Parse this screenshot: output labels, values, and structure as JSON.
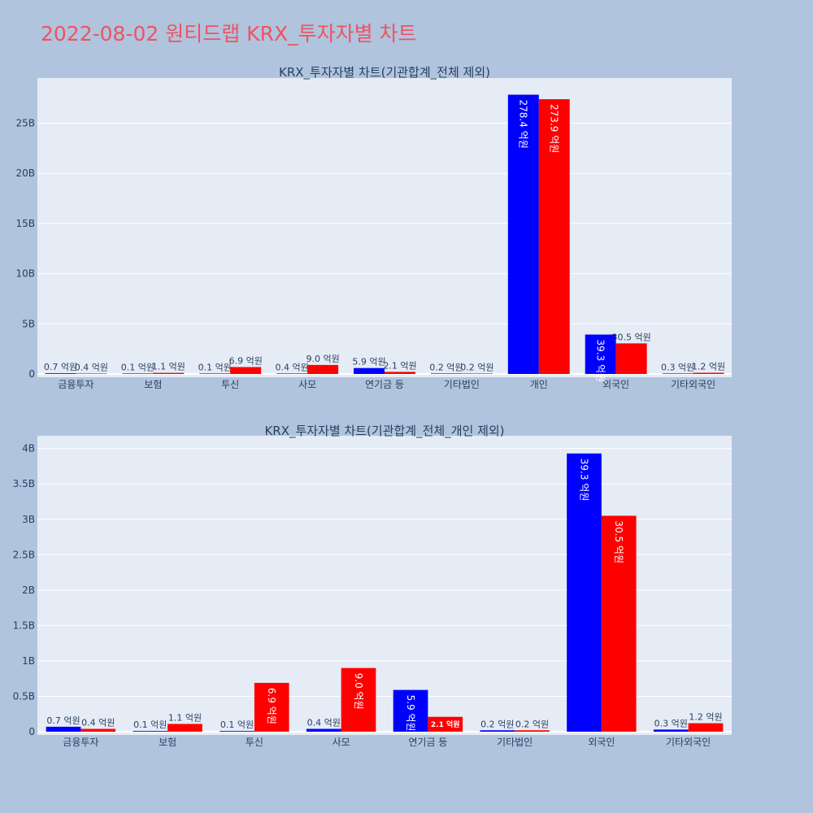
{
  "page": {
    "title": "2022-08-02 원티드랩 KRX_투자자별 차트"
  },
  "colors": {
    "background": "#b0c4de",
    "plot_bg": "#e5ecf6",
    "title": "#ef5360",
    "buy": "#0000ff",
    "sell": "#ff0000",
    "text": "#2a3f5f"
  },
  "chart_data": [
    {
      "type": "bar",
      "title": "KRX_투자자별 차트(기관합계_전체 제외)",
      "categories": [
        "금융투자",
        "보험",
        "투신",
        "사모",
        "연기금 등",
        "기타법인",
        "개인",
        "외국인",
        "기타외국인"
      ],
      "ylim": [
        0,
        29500000000
      ],
      "yticks": [
        0,
        5000000000,
        10000000000,
        15000000000,
        20000000000,
        25000000000
      ],
      "ytick_labels": [
        "0",
        "5B",
        "10B",
        "15B",
        "20B",
        "25B"
      ],
      "grid": true,
      "series": [
        {
          "color": "#0000ff",
          "values": [
            70000000,
            10000000,
            10000000,
            40000000,
            590000000,
            20000000,
            27840000000,
            3930000000,
            30000000
          ],
          "labels": [
            "0.7 억원",
            "0.1 억원",
            "0.1 억원",
            "0.4 억원",
            "5.9 억원",
            "0.2 억원",
            "278.4 억원",
            "39.3 억원",
            "0.3 억원"
          ]
        },
        {
          "color": "#ff0000",
          "values": [
            40000000,
            110000000,
            690000000,
            900000000,
            210000000,
            20000000,
            27390000000,
            3050000000,
            120000000
          ],
          "labels": [
            "0.4 억원",
            "1.1 억원",
            "6.9 억원",
            "9.0 억원",
            "2.1 억원",
            "0.2 억원",
            "273.9 억원",
            "30.5 억원",
            "1.2 억원"
          ]
        }
      ]
    },
    {
      "type": "bar",
      "title": "KRX_투자자별 차트(기관합계_전체_개인 제외)",
      "categories": [
        "금융투자",
        "보험",
        "투신",
        "사모",
        "연기금 등",
        "기타법인",
        "외국인",
        "기타외국인"
      ],
      "ylim": [
        0,
        4180000000
      ],
      "yticks": [
        0,
        500000000,
        1000000000,
        1500000000,
        2000000000,
        2500000000,
        3000000000,
        3500000000,
        4000000000
      ],
      "ytick_labels": [
        "0",
        "0.5B",
        "1B",
        "1.5B",
        "2B",
        "2.5B",
        "3B",
        "3.5B",
        "4B"
      ],
      "grid": true,
      "series": [
        {
          "color": "#0000ff",
          "values": [
            70000000,
            10000000,
            10000000,
            40000000,
            590000000,
            20000000,
            3930000000,
            30000000
          ],
          "labels": [
            "0.7 억원",
            "0.1 억원",
            "0.1 억원",
            "0.4 억원",
            "5.9 억원",
            "0.2 억원",
            "39.3 억원",
            "0.3 억원"
          ]
        },
        {
          "color": "#ff0000",
          "values": [
            40000000,
            110000000,
            690000000,
            900000000,
            210000000,
            20000000,
            3050000000,
            120000000
          ],
          "labels": [
            "0.4 억원",
            "1.1 억원",
            "6.9 억원",
            "9.0 억원",
            "2.1 억원",
            "0.2 억원",
            "30.5 억원",
            "1.2 억원"
          ]
        }
      ]
    }
  ]
}
